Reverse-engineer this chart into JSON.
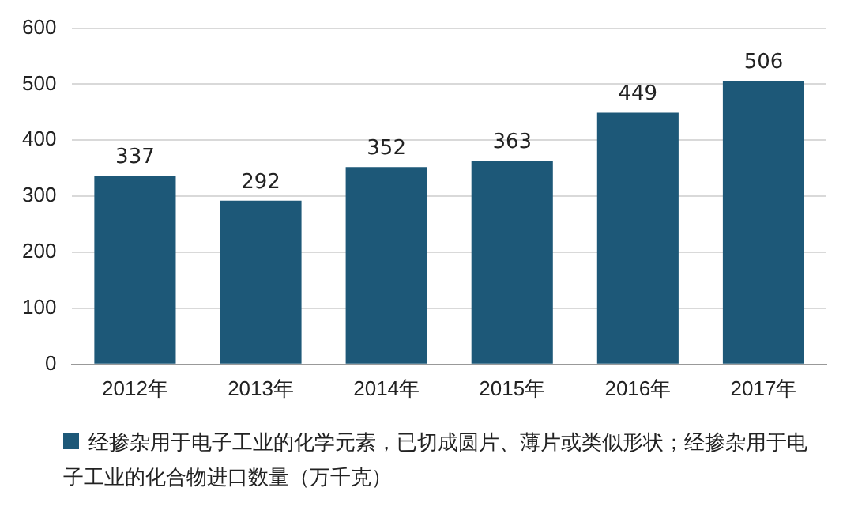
{
  "chart_data": {
    "type": "bar",
    "categories": [
      "2012年",
      "2013年",
      "2014年",
      "2015年",
      "2016年",
      "2017年"
    ],
    "series": [
      {
        "name": "经掺杂用于电子工业的化学元素，已切成圆片、薄片或类似形状；经掺杂用于电子工业的化合物进口数量（万千克）",
        "color": "#1d5878",
        "values": [
          337,
          292,
          352,
          363,
          449,
          506
        ]
      }
    ],
    "ylim": [
      0,
      600
    ],
    "yticks": [
      0,
      100,
      200,
      300,
      400,
      500,
      600
    ],
    "grid": "y",
    "legend": "bottom",
    "data_labels": true
  }
}
